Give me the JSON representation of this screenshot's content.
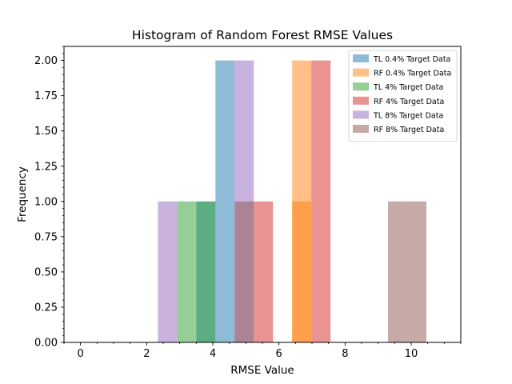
{
  "chart_data": {
    "type": "bar",
    "subtype": "histogram",
    "title": "Histogram of Random Forest RMSE Values",
    "xlabel": "RMSE Value",
    "ylabel": "Frequency",
    "xlim": [
      -0.5,
      11.5
    ],
    "ylim": [
      0,
      2.1
    ],
    "xticks": [
      0,
      2,
      4,
      6,
      8,
      10
    ],
    "yticks": [
      0.0,
      0.25,
      0.5,
      0.75,
      1.0,
      1.25,
      1.5,
      1.75,
      2.0
    ],
    "bin_width": 0.58,
    "bar_alpha": 0.5,
    "legend_position": "upper right",
    "grid": false,
    "series": [
      {
        "name": "TL 0.4% Target Data",
        "color": "#1f77b4",
        "bins": [
          [
            3.5,
            1
          ],
          [
            4.08,
            2
          ]
        ]
      },
      {
        "name": "RF 0.4% Target Data",
        "color": "#ff7f0e",
        "bins": [
          [
            6.4,
            1
          ],
          [
            6.4,
            2
          ]
        ]
      },
      {
        "name": "TL 4% Target Data",
        "color": "#2ca02c",
        "bins": [
          [
            2.92,
            1
          ],
          [
            3.5,
            1
          ]
        ]
      },
      {
        "name": "RF 4% Target Data",
        "color": "#d62728",
        "bins": [
          [
            5.24,
            1
          ],
          [
            6.98,
            2
          ]
        ]
      },
      {
        "name": "TL 8% Target Data",
        "color": "#9467bd",
        "bins": [
          [
            2.34,
            1
          ],
          [
            4.66,
            2
          ]
        ]
      },
      {
        "name": "RF 8% Target Data",
        "color": "#8c564b",
        "bins": [
          [
            4.66,
            1
          ],
          [
            9.3,
            1
          ],
          [
            9.88,
            1
          ]
        ]
      }
    ]
  }
}
